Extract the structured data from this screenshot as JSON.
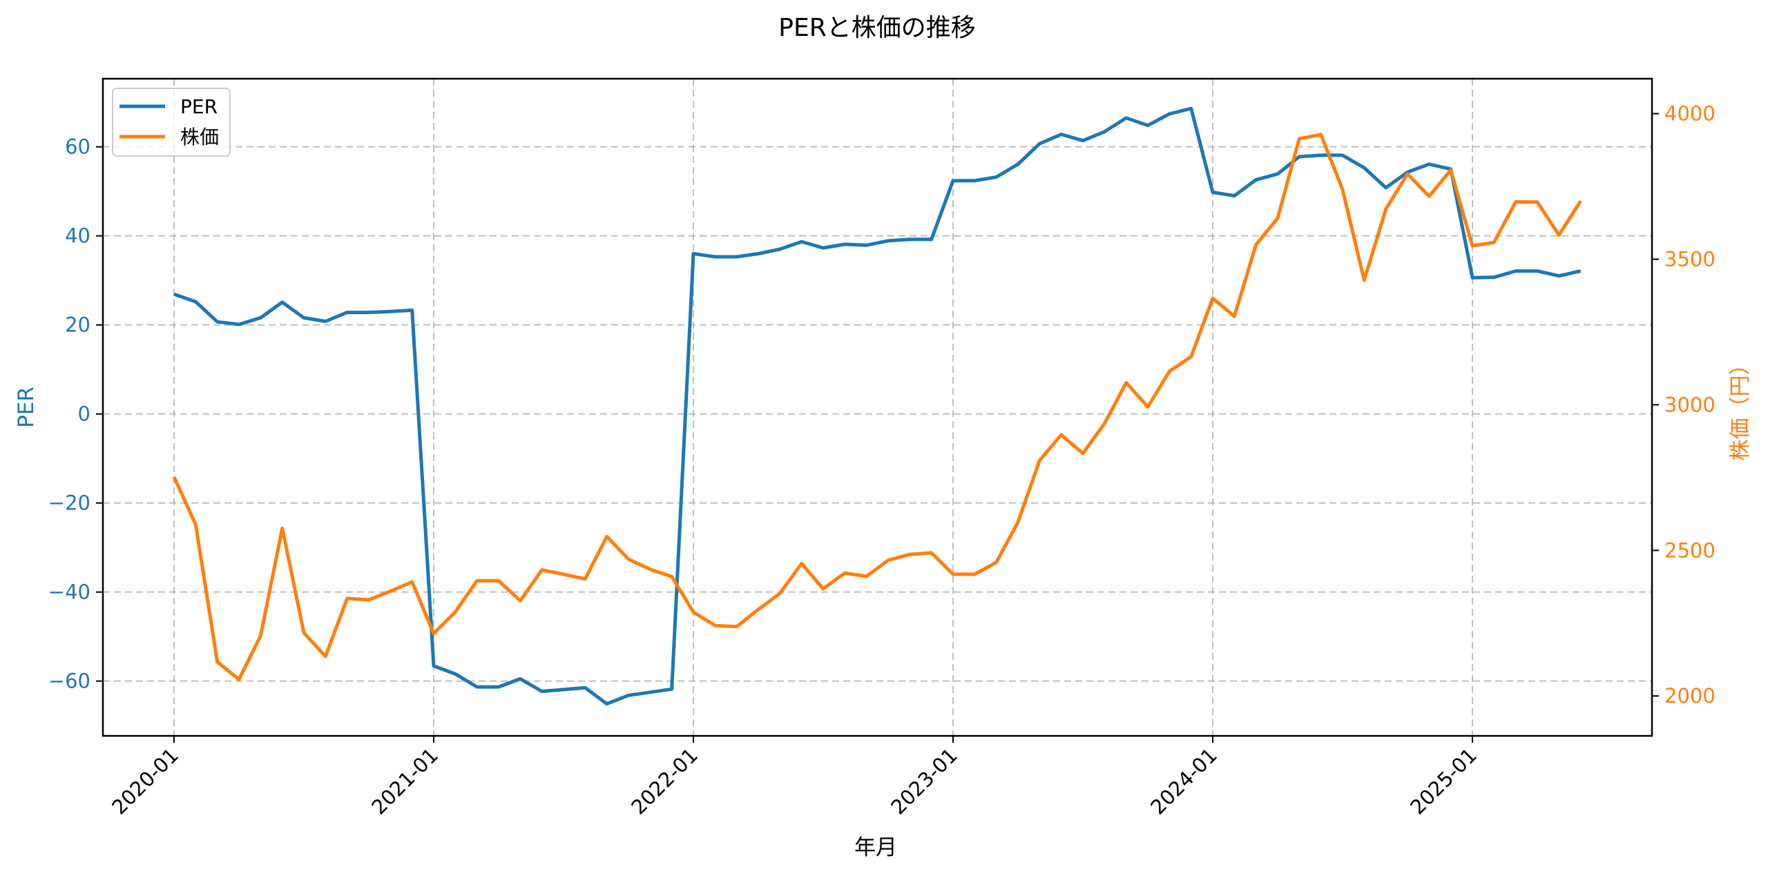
{
  "chart_data": {
    "type": "line",
    "title": "PERと株価の推移",
    "xlabel": "年月",
    "ylabel_left": "PER",
    "ylabel_right": "株価（円）",
    "x_ticks": [
      "2020-01",
      "2021-01",
      "2022-01",
      "2023-01",
      "2024-01",
      "2025-01"
    ],
    "y_left_ticks": [
      60,
      40,
      20,
      0,
      -20,
      -40,
      -60
    ],
    "y_left_tick_labels": [
      "60",
      "40",
      "20",
      "0",
      "−20",
      "−40",
      "−60"
    ],
    "y_right_ticks": [
      4000,
      3500,
      3000,
      2500,
      2000
    ],
    "y_right_tick_labels": [
      "4000",
      "3500",
      "3000",
      "2500",
      "2000"
    ],
    "ylim_left": [
      -72.3,
      75.3
    ],
    "ylim_right": [
      1863,
      4120
    ],
    "grid": true,
    "legend_position": "upper left",
    "x": [
      "2020-01",
      "2020-02",
      "2020-03",
      "2020-04",
      "2020-05",
      "2020-06",
      "2020-07",
      "2020-08",
      "2020-09",
      "2020-10",
      "2020-11",
      "2020-12",
      "2021-01",
      "2021-02",
      "2021-03",
      "2021-04",
      "2021-05",
      "2021-06",
      "2021-07",
      "2021-08",
      "2021-09",
      "2021-10",
      "2021-11",
      "2021-12",
      "2022-01",
      "2022-02",
      "2022-03",
      "2022-04",
      "2022-05",
      "2022-06",
      "2022-07",
      "2022-08",
      "2022-09",
      "2022-10",
      "2022-11",
      "2022-12",
      "2023-01",
      "2023-02",
      "2023-03",
      "2023-04",
      "2023-05",
      "2023-06",
      "2023-07",
      "2023-08",
      "2023-09",
      "2023-10",
      "2023-11",
      "2023-12",
      "2024-01",
      "2024-02",
      "2024-03",
      "2024-04",
      "2024-05",
      "2024-06",
      "2024-07",
      "2024-08",
      "2024-09",
      "2024-10",
      "2024-11",
      "2024-12",
      "2025-01",
      "2025-02",
      "2025-03",
      "2025-04",
      "2025-05",
      "2025-06"
    ],
    "series": [
      {
        "name": "PER",
        "axis": "left",
        "color": "#1f77b4",
        "values": [
          26.9,
          25.2,
          20.7,
          20.1,
          21.6,
          25.1,
          21.6,
          20.8,
          22.8,
          22.8,
          23.0,
          23.3,
          -56.6,
          -58.4,
          -61.3,
          -61.3,
          -59.5,
          -62.3,
          -61.9,
          -61.5,
          -65.1,
          -63.2,
          -62.5,
          -61.8,
          36.0,
          35.3,
          35.3,
          36.0,
          37.0,
          38.7,
          37.3,
          38.1,
          37.9,
          38.9,
          39.2,
          39.2,
          52.4,
          52.4,
          53.2,
          56.1,
          60.7,
          62.8,
          61.4,
          63.4,
          66.5,
          64.8,
          67.4,
          68.6,
          49.8,
          49.0,
          52.6,
          53.9,
          57.8,
          58.1,
          58.1,
          55.3,
          50.8,
          54.3,
          56.1,
          55.0,
          30.6,
          30.7,
          32.1,
          32.1,
          31.0,
          32.1
        ]
      },
      {
        "name": "株価",
        "axis": "right",
        "color": "#ff7f0e",
        "values": [
          2752,
          2589,
          2117,
          2057,
          2206,
          2576,
          2217,
          2136,
          2335,
          2330,
          2360,
          2392,
          2214,
          2289,
          2396,
          2396,
          2327,
          2433,
          2418,
          2402,
          2548,
          2470,
          2435,
          2410,
          2288,
          2242,
          2238,
          2297,
          2352,
          2455,
          2368,
          2422,
          2411,
          2466,
          2486,
          2492,
          2418,
          2418,
          2459,
          2597,
          2809,
          2897,
          2833,
          2936,
          3076,
          2993,
          3115,
          3165,
          3366,
          3304,
          3550,
          3641,
          3914,
          3928,
          3739,
          3428,
          3672,
          3793,
          3716,
          3806,
          3546,
          3558,
          3697,
          3696,
          3583,
          3700
        ]
      }
    ]
  },
  "legend": {
    "items": [
      {
        "label": "PER",
        "color": "#1f77b4"
      },
      {
        "label": "株価",
        "color": "#ff7f0e"
      }
    ]
  },
  "colors": {
    "per": "#1f77b4",
    "price": "#ff7f0e",
    "grid": "#b0b0b0",
    "frame": "#000000"
  }
}
